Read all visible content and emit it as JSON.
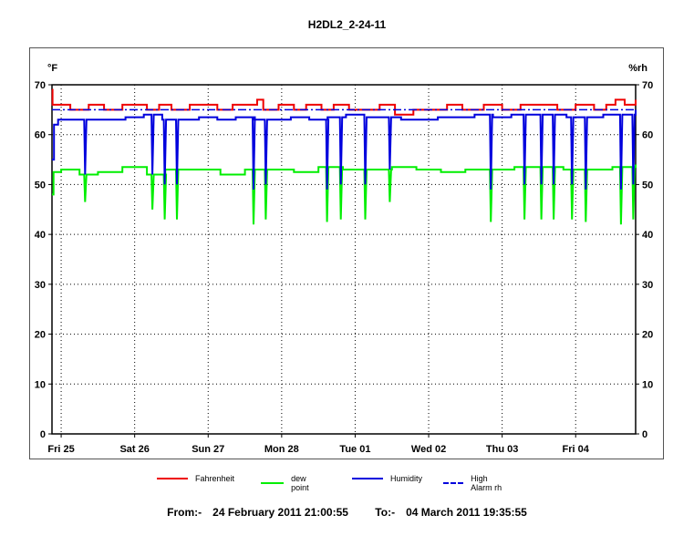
{
  "chart_data": {
    "type": "line",
    "title": "H2DL2_2-24-11",
    "left_axis_unit": "°F",
    "right_axis_unit": "%rh",
    "ylim": [
      0,
      70
    ],
    "yticks": [
      0,
      10,
      20,
      30,
      40,
      50,
      60,
      70
    ],
    "xlim": [
      "2011-02-24 21:00",
      "2011-03-04 19:35"
    ],
    "x_tick_labels": [
      "Fri 25",
      "Sat 26",
      "Sun 27",
      "Mon 28",
      "Tue 01",
      "Wed 02",
      "Thu 03",
      "Fri 04"
    ],
    "x_ticks": [
      "2011-02-25 00:00",
      "2011-02-26 00:00",
      "2011-02-27 00:00",
      "2011-02-28 00:00",
      "2011-03-01 00:00",
      "2011-03-02 00:00",
      "2011-03-03 00:00",
      "2011-03-04 00:00"
    ],
    "grid": true,
    "legend_position": "bottom",
    "series": [
      {
        "name": "Fahrenheit",
        "color": "#ee0000",
        "style": "solid",
        "axis": "left",
        "x": [
          "2011-02-24 21:00",
          "2011-02-24 21:10",
          "2011-02-24 22:00",
          "2011-02-25 03:00",
          "2011-02-25 09:00",
          "2011-02-25 14:00",
          "2011-02-25 20:00",
          "2011-02-26 04:00",
          "2011-02-26 08:00",
          "2011-02-26 12:00",
          "2011-02-26 18:00",
          "2011-02-26 22:00",
          "2011-02-27 03:00",
          "2011-02-27 08:00",
          "2011-02-27 13:00",
          "2011-02-27 16:00",
          "2011-02-27 18:00",
          "2011-02-27 23:00",
          "2011-02-28 04:00",
          "2011-02-28 08:00",
          "2011-02-28 13:00",
          "2011-02-28 17:00",
          "2011-02-28 22:00",
          "2011-03-01 03:00",
          "2011-03-01 08:00",
          "2011-03-01 13:00",
          "2011-03-01 19:00",
          "2011-03-02 00:00",
          "2011-03-02 06:00",
          "2011-03-02 11:00",
          "2011-03-02 18:00",
          "2011-03-03 00:00",
          "2011-03-03 06:00",
          "2011-03-03 12:00",
          "2011-03-03 18:00",
          "2011-03-04 00:00",
          "2011-03-04 06:00",
          "2011-03-04 10:00",
          "2011-03-04 13:00",
          "2011-03-04 16:00",
          "2011-03-04 19:35"
        ],
        "y": [
          69,
          66,
          66,
          65,
          66,
          65,
          66,
          65,
          66,
          65,
          66,
          66,
          65,
          66,
          66,
          67,
          65,
          66,
          65,
          66,
          65,
          66,
          65,
          65,
          66,
          64,
          65,
          65,
          66,
          65,
          66,
          65,
          66,
          66,
          65,
          66,
          65,
          66,
          67,
          66,
          67
        ]
      },
      {
        "name": "dew point",
        "color": "#00ee00",
        "style": "solid",
        "axis": "left",
        "x": [
          "2011-02-24 21:00",
          "2011-02-24 21:30",
          "2011-02-25 00:00",
          "2011-02-25 06:00",
          "2011-02-25 12:00",
          "2011-02-25 20:00",
          "2011-02-26 04:00",
          "2011-02-26 10:00",
          "2011-02-26 18:00",
          "2011-02-27 04:00",
          "2011-02-27 12:00",
          "2011-02-27 20:00",
          "2011-02-28 04:00",
          "2011-02-28 12:00",
          "2011-02-28 20:00",
          "2011-03-01 04:00",
          "2011-03-01 12:00",
          "2011-03-01 20:00",
          "2011-03-02 04:00",
          "2011-03-02 12:00",
          "2011-03-02 20:00",
          "2011-03-03 04:00",
          "2011-03-03 12:00",
          "2011-03-03 20:00",
          "2011-03-04 04:00",
          "2011-03-04 12:00",
          "2011-03-04 19:35"
        ],
        "y": [
          48,
          52.5,
          53,
          52,
          52.5,
          53.5,
          52,
          53,
          53,
          52,
          53,
          53,
          52.5,
          53.5,
          53,
          53,
          53.5,
          53,
          52.5,
          53,
          53,
          53.5,
          53.5,
          53,
          53,
          53.5,
          54
        ]
      },
      {
        "name": "Humidity",
        "color": "#0000dd",
        "style": "solid",
        "axis": "right",
        "x": [
          "2011-02-24 21:00",
          "2011-02-24 21:40",
          "2011-02-24 23:00",
          "2011-02-25 03:00",
          "2011-02-25 09:00",
          "2011-02-25 15:00",
          "2011-02-25 21:00",
          "2011-02-26 03:00",
          "2011-02-26 09:00",
          "2011-02-26 15:00",
          "2011-02-26 21:00",
          "2011-02-27 03:00",
          "2011-02-27 09:00",
          "2011-02-27 15:00",
          "2011-02-27 21:00",
          "2011-02-28 03:00",
          "2011-02-28 09:00",
          "2011-02-28 15:00",
          "2011-02-28 21:00",
          "2011-03-01 03:00",
          "2011-03-01 09:00",
          "2011-03-01 15:00",
          "2011-03-01 21:00",
          "2011-03-02 03:00",
          "2011-03-02 09:00",
          "2011-03-02 15:00",
          "2011-03-02 21:00",
          "2011-03-03 03:00",
          "2011-03-03 09:00",
          "2011-03-03 15:00",
          "2011-03-03 21:00",
          "2011-03-04 03:00",
          "2011-03-04 09:00",
          "2011-03-04 15:00",
          "2011-03-04 19:35"
        ],
        "y": [
          55,
          62,
          63,
          63,
          63,
          63,
          63.5,
          64,
          63,
          63,
          63.5,
          63,
          63.5,
          63,
          63,
          63.5,
          63,
          63.5,
          64,
          63.5,
          63.5,
          63,
          63,
          63.5,
          63.5,
          64,
          63.5,
          64,
          64,
          64,
          63.5,
          63.5,
          64,
          64,
          65
        ]
      },
      {
        "name": "High Alarm rh",
        "color": "#0000dd",
        "style": "dashdot",
        "axis": "right",
        "x": [
          "2011-02-24 21:00",
          "2011-03-04 19:35"
        ],
        "y": [
          65,
          65
        ]
      }
    ],
    "dips": [
      {
        "time": "2011-02-25 07:30",
        "dew_point": 46.5,
        "humidity": 52
      },
      {
        "time": "2011-02-26 05:30",
        "dew_point": 45,
        "humidity": 52
      },
      {
        "time": "2011-02-26 09:30",
        "dew_point": 43,
        "humidity": 50
      },
      {
        "time": "2011-02-26 13:30",
        "dew_point": 43,
        "humidity": 50
      },
      {
        "time": "2011-02-27 14:30",
        "dew_point": 42,
        "humidity": 49
      },
      {
        "time": "2011-02-27 18:30",
        "dew_point": 43,
        "humidity": 50
      },
      {
        "time": "2011-02-28 14:30",
        "dew_point": 42.5,
        "humidity": 49
      },
      {
        "time": "2011-02-28 19:00",
        "dew_point": 43,
        "humidity": 50
      },
      {
        "time": "2011-03-01 03:00",
        "dew_point": 43,
        "humidity": 50
      },
      {
        "time": "2011-03-01 11:00",
        "dew_point": 46.5,
        "humidity": 53
      },
      {
        "time": "2011-03-02 20:00",
        "dew_point": 42.5,
        "humidity": 49
      },
      {
        "time": "2011-03-03 07:00",
        "dew_point": 43,
        "humidity": 50
      },
      {
        "time": "2011-03-03 12:30",
        "dew_point": 43,
        "humidity": 50
      },
      {
        "time": "2011-03-03 16:30",
        "dew_point": 43,
        "humidity": 50
      },
      {
        "time": "2011-03-03 22:30",
        "dew_point": 43,
        "humidity": 50
      },
      {
        "time": "2011-03-04 03:00",
        "dew_point": 42.5,
        "humidity": 49
      },
      {
        "time": "2011-03-04 14:30",
        "dew_point": 42,
        "humidity": 49
      },
      {
        "time": "2011-03-04 18:30",
        "dew_point": 43,
        "humidity": 50
      }
    ]
  },
  "legend": {
    "items": [
      "Fahrenheit",
      "dew point",
      "Humidity",
      "High Alarm rh"
    ]
  },
  "footer": {
    "from_label": "From:-",
    "from_value": "24 February 2011 21:00:55",
    "to_label": "To:-",
    "to_value": "04 March 2011 19:35:55"
  }
}
